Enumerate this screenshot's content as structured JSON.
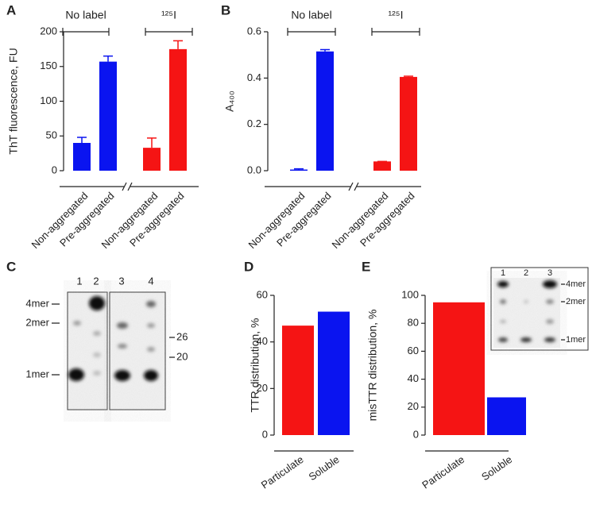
{
  "chart_data": [
    {
      "type": "bar",
      "label": "A",
      "ylabel": "ThT fluorescence, FU",
      "group_labels": [
        "No label",
        "¹²⁵I"
      ],
      "categories": [
        "Non-aggregated",
        "Pre-aggregated",
        "Non-aggregated",
        "Pre-aggregated"
      ],
      "values": [
        40,
        157,
        33,
        175
      ],
      "errors": [
        8,
        8,
        14,
        12
      ],
      "colors": [
        "#0a14f0",
        "#0a14f0",
        "#f51414",
        "#f51414"
      ],
      "ylim": [
        0,
        200
      ],
      "yticks": [
        0,
        50,
        100,
        150,
        200
      ]
    },
    {
      "type": "bar",
      "label": "B",
      "ylabel": "A₄₀₀",
      "group_labels": [
        "No label",
        "¹²⁵I"
      ],
      "categories": [
        "Non-aggregated",
        "Pre-aggregated",
        "Non-aggregated",
        "Pre-aggregated"
      ],
      "values": [
        0.005,
        0.515,
        0.04,
        0.405
      ],
      "errors": [
        0.003,
        0.008,
        0,
        0.003
      ],
      "colors": [
        "#0a14f0",
        "#0a14f0",
        "#f51414",
        "#f51414"
      ],
      "ylim": [
        0,
        0.6
      ],
      "yticks": [
        {
          "value": 0,
          "label": "0.0"
        },
        0.2,
        0.4,
        0.6
      ]
    },
    {
      "type": "bar",
      "label": "D",
      "ylabel": "TTR distribution, %",
      "categories": [
        "Particulate",
        "Soluble"
      ],
      "values": [
        47,
        53
      ],
      "colors": [
        "#f51414",
        "#0a14f0"
      ],
      "ylim": [
        0,
        60
      ],
      "yticks": [
        0,
        20,
        40,
        60
      ]
    },
    {
      "type": "bar",
      "label": "E",
      "ylabel": "misTTR distribution, %",
      "categories": [
        "Particulate",
        "Soluble"
      ],
      "values": [
        95,
        27
      ],
      "colors": [
        "#f51414",
        "#0a14f0"
      ],
      "ylim": [
        0,
        100
      ],
      "yticks": [
        0,
        20,
        40,
        60,
        80,
        100
      ]
    }
  ],
  "gel_c": {
    "label": "C",
    "lanes": [
      "1",
      "2",
      "3",
      "4"
    ],
    "left_markers": [
      "4mer",
      "2mer",
      "1mer"
    ],
    "right_markers": [
      "26",
      "20"
    ]
  },
  "gel_e": {
    "lanes": [
      "1",
      "2",
      "3"
    ],
    "markers": [
      "4mer",
      "2mer",
      "1mer"
    ]
  }
}
